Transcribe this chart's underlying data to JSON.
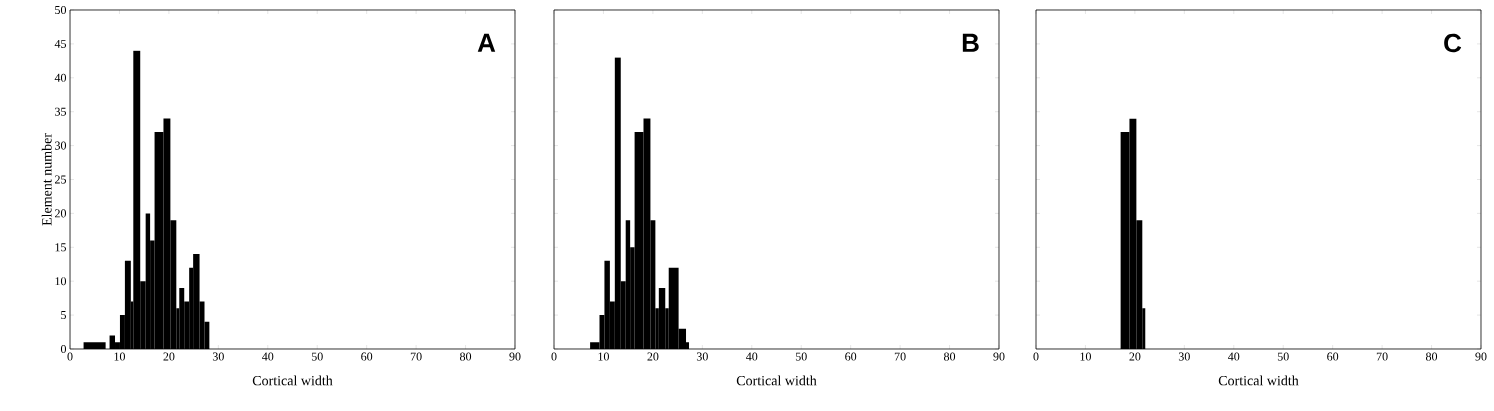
{
  "chart_data": [
    {
      "type": "histogram",
      "xlabel": "Cortical width",
      "ylabel": "Element number",
      "annotations": [
        "A"
      ],
      "color": "#000000",
      "bins": [
        2.7,
        7.2,
        8.0,
        9.1,
        10.1,
        11.1,
        12.3,
        12.8,
        14.2,
        15.3,
        16.2,
        17.1,
        18.9,
        20.3,
        21.5,
        22.1,
        23.1,
        24.1,
        24.9,
        26.2,
        27.2,
        28.2
      ],
      "values": [
        1,
        0,
        2,
        1,
        5,
        13,
        7,
        44,
        10,
        20,
        16,
        32,
        34,
        19,
        6,
        9,
        7,
        12,
        14,
        7,
        4
      ],
      "xlim": [
        0,
        90
      ],
      "ylim": [
        0,
        50
      ],
      "xticks": [
        0,
        10,
        20,
        30,
        40,
        50,
        60,
        70,
        80,
        90
      ],
      "yticks": [
        0,
        5,
        10,
        15,
        20,
        25,
        30,
        35,
        40,
        45,
        50
      ]
    },
    {
      "type": "histogram",
      "xlabel": "Cortical width",
      "annotations": [
        "B"
      ],
      "color": "#000000",
      "tick_labels": "x",
      "bins": [
        7.3,
        9.2,
        10.2,
        11.3,
        12.3,
        13.5,
        14.5,
        15.4,
        16.3,
        18.1,
        19.5,
        20.5,
        21.2,
        22.5,
        23.2,
        25.2,
        26.7,
        27.3
      ],
      "values": [
        1,
        5,
        13,
        7,
        43,
        10,
        19,
        15,
        32,
        34,
        19,
        6,
        9,
        6,
        12,
        3,
        1
      ],
      "xlim": [
        0,
        90
      ],
      "ylim": [
        0,
        50
      ],
      "xticks": [
        0,
        10,
        20,
        30,
        40,
        50,
        60,
        70,
        80,
        90
      ],
      "yticks": [
        0,
        5,
        10,
        15,
        20,
        25,
        30,
        35,
        40,
        45,
        50
      ]
    },
    {
      "type": "histogram",
      "xlabel": "Cortical width",
      "annotations": [
        "C"
      ],
      "color": "#000000",
      "tick_labels": "x",
      "bins": [
        17.1,
        18.9,
        20.3,
        21.5,
        22.1
      ],
      "values": [
        32,
        34,
        19,
        6
      ],
      "xlim": [
        0,
        90
      ],
      "ylim": [
        0,
        50
      ],
      "xticks": [
        0,
        10,
        20,
        30,
        40,
        50,
        60,
        70,
        80,
        90
      ],
      "yticks": [
        0,
        5,
        10,
        15,
        20,
        25,
        30,
        35,
        40,
        45,
        50
      ]
    }
  ]
}
